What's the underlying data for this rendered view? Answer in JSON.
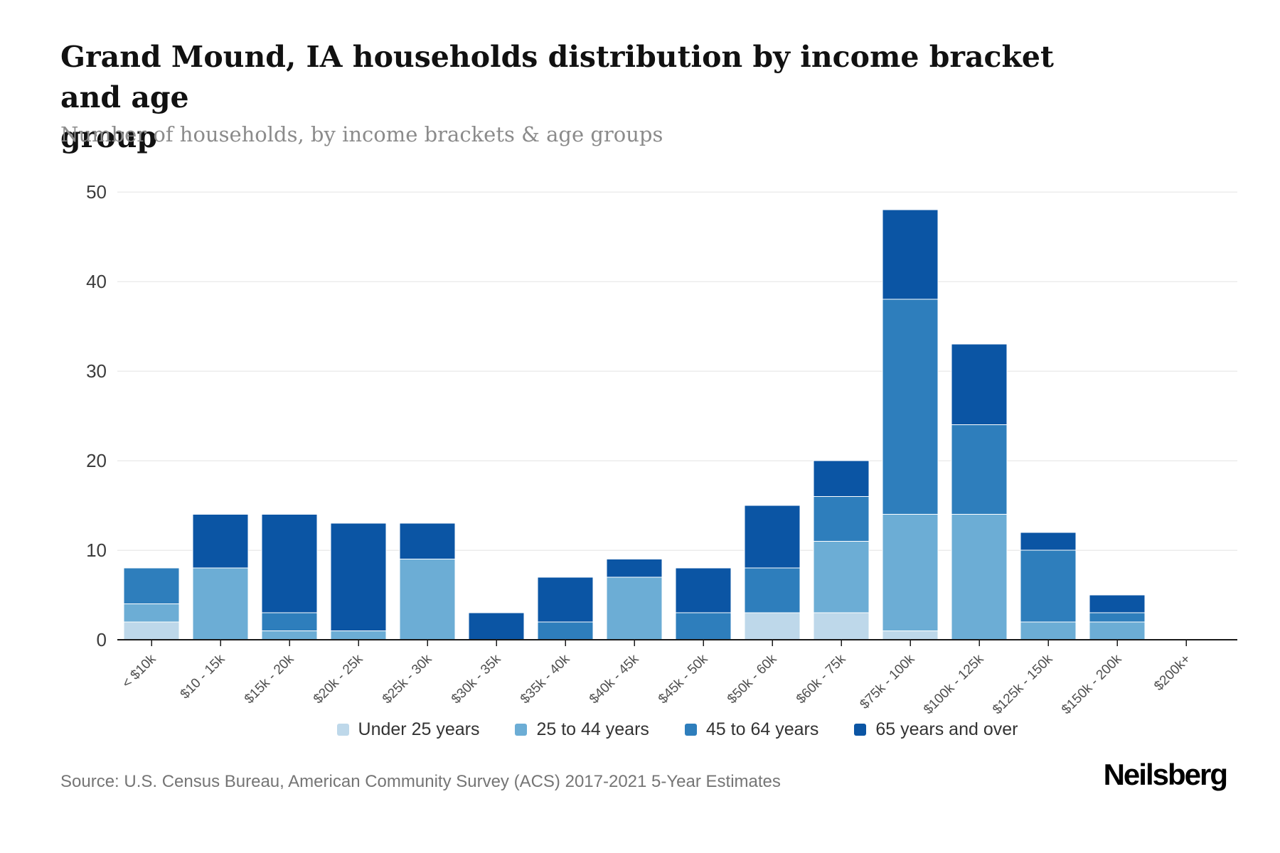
{
  "header": {
    "title_line1": "Grand Mound, IA households distribution by income bracket and age",
    "title_line2": "group",
    "subtitle": "Number of households, by income brackets & age groups"
  },
  "chart_data": {
    "type": "bar",
    "stacked": true,
    "title": "Grand Mound, IA households distribution by income bracket and age group",
    "subtitle": "Number of households, by income brackets & age groups",
    "xlabel": "",
    "ylabel": "",
    "ylim": [
      0,
      50
    ],
    "yticks": [
      0,
      10,
      20,
      30,
      40,
      50
    ],
    "grid": "horizontal",
    "legend_position": "bottom",
    "categories": [
      "< $10k",
      "$10 - 15k",
      "$15k - 20k",
      "$20k - 25k",
      "$25k - 30k",
      "$30k - 35k",
      "$35k - 40k",
      "$40k - 45k",
      "$45k - 50k",
      "$50k - 60k",
      "$60k - 75k",
      "$75k - 100k",
      "$100k - 125k",
      "$125k - 150k",
      "$150k - 200k",
      "$200k+"
    ],
    "series": [
      {
        "name": "Under 25 years",
        "color": "#bed8ea",
        "values": [
          2,
          0,
          0,
          0,
          0,
          0,
          0,
          0,
          0,
          3,
          3,
          1,
          0,
          0,
          0,
          0
        ]
      },
      {
        "name": "25 to 44 years",
        "color": "#6cadd5",
        "values": [
          2,
          8,
          1,
          1,
          9,
          0,
          0,
          7,
          0,
          0,
          8,
          13,
          14,
          2,
          2,
          0
        ]
      },
      {
        "name": "45 to 64 years",
        "color": "#2e7ebc",
        "values": [
          4,
          0,
          2,
          0,
          0,
          0,
          2,
          0,
          3,
          5,
          5,
          24,
          10,
          8,
          1,
          0
        ]
      },
      {
        "name": "65 years and over",
        "color": "#0b55a4",
        "values": [
          0,
          6,
          11,
          12,
          4,
          3,
          5,
          2,
          5,
          7,
          4,
          10,
          9,
          2,
          2,
          0
        ]
      }
    ],
    "totals": [
      8,
      14,
      14,
      13,
      13,
      3,
      7,
      9,
      8,
      15,
      20,
      48,
      33,
      12,
      5,
      0
    ],
    "axis_color": "#1a1a1a",
    "gridline_color": "#ececec",
    "tick_label_color": "#4f4f4f",
    "ytick_label_color": "#3c3c3c"
  },
  "footer": {
    "source": "Source: U.S. Census Bureau, American Community Survey (ACS) 2017-2021 5-Year Estimates",
    "logo": "Neilsberg"
  }
}
